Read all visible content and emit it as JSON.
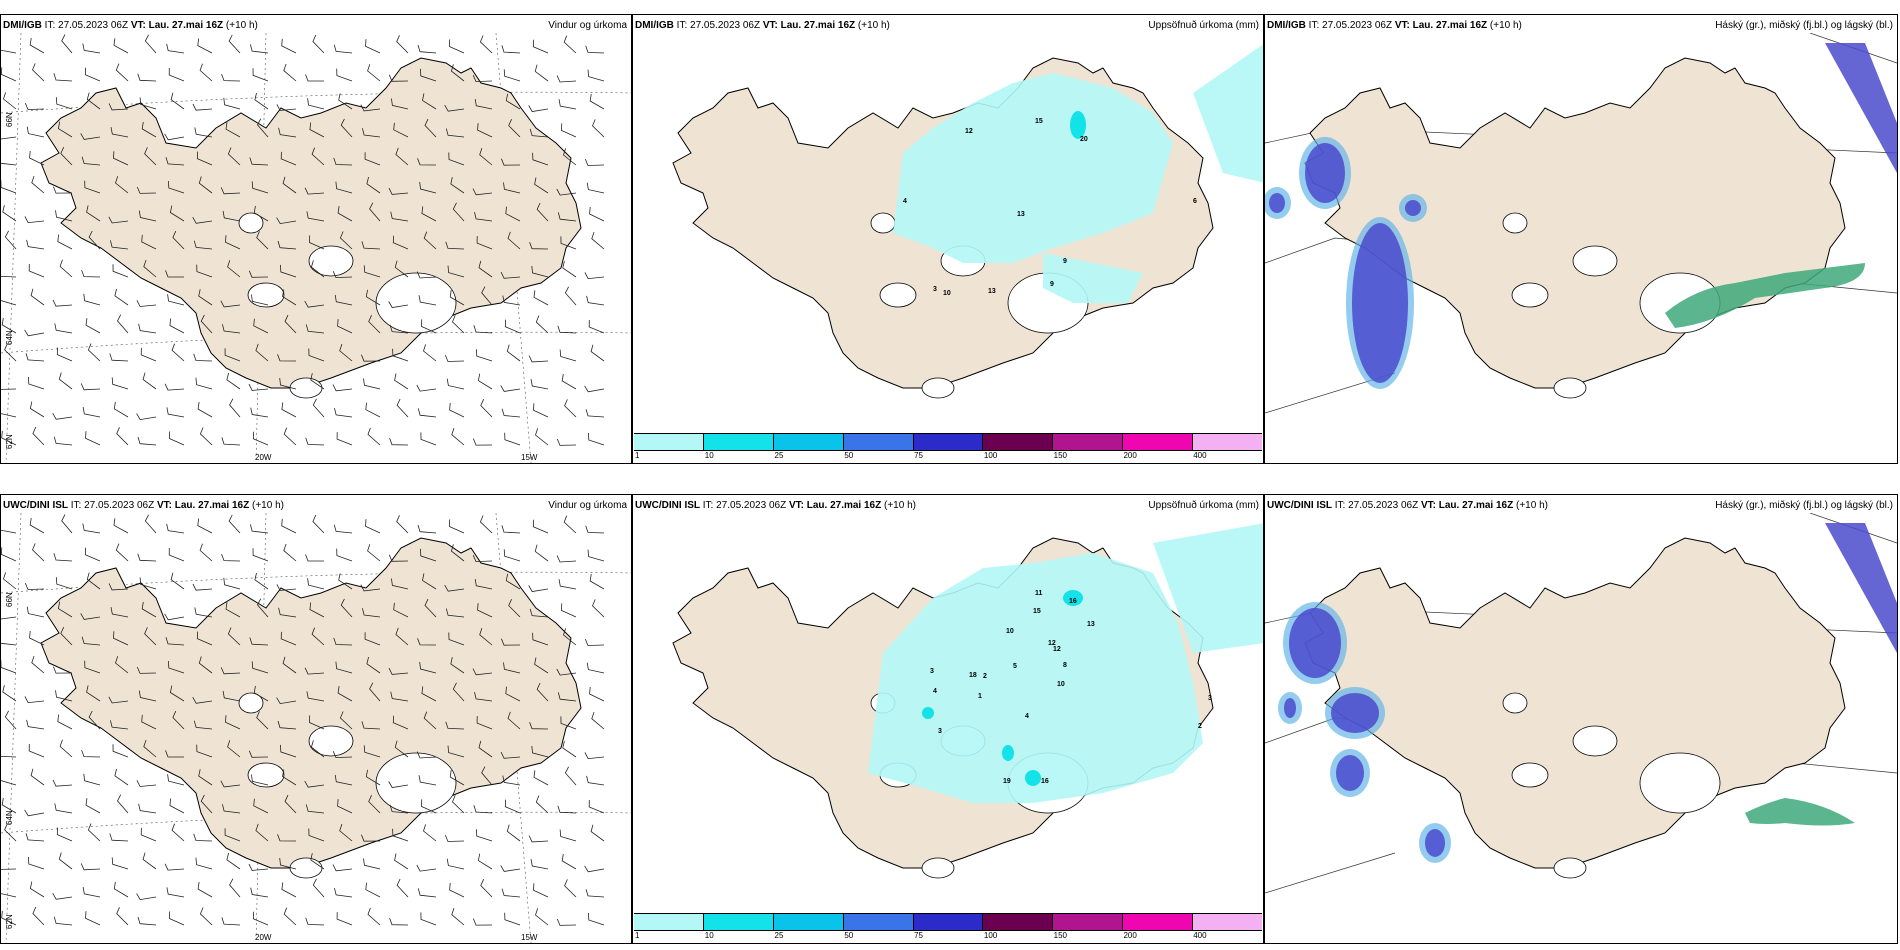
{
  "rows": [
    {
      "model": "DMI/IGB",
      "it_label": "IT:",
      "it_value": "27.05.2023 06Z",
      "vt_label": "VT: Lau. 27.mai 16Z",
      "lead": "(+10 h)",
      "titles": [
        "Vindur og úrkoma",
        "Uppsöfnuð úrkoma (mm)",
        "Háský (gr.), miðský (fj.bl.) og lágský (bl.)"
      ],
      "precip_labels": [
        "12",
        "15",
        "20",
        "13",
        "4",
        "9",
        "9",
        "6",
        "3",
        "10",
        "13"
      ]
    },
    {
      "model": "UWC/DINI ISL",
      "it_label": "IT:",
      "it_value": "27.05.2023 06Z",
      "vt_label": "VT: Lau. 27.mai 16Z",
      "lead": "(+10 h)",
      "titles": [
        "Vindur og úrkoma",
        "Uppsöfnuð úrkoma (mm)",
        "Háský (gr.), miðský (fj.bl.) og lágský (bl.)"
      ],
      "precip_labels": [
        "11",
        "15",
        "16",
        "13",
        "10",
        "12",
        "8",
        "5",
        "3",
        "3",
        "2",
        "18",
        "10",
        "4",
        "12",
        "19",
        "16",
        "2",
        "1",
        "4",
        "3"
      ]
    }
  ],
  "axis_labels": {
    "lat_top": "66N",
    "lat_mid": "64N",
    "lat_bottom": "62N",
    "lon_left": "20W",
    "lon_right": "15W"
  },
  "colorbar": {
    "ticks": [
      "1",
      "10",
      "25",
      "50",
      "75",
      "100",
      "150",
      "200",
      "400"
    ],
    "colors": [
      "#b3f7f7",
      "#13e3e8",
      "#09c3e8",
      "#3b73e8",
      "#2b2bc9",
      "#6b0050",
      "#b0158f",
      "#f006b0",
      "#f3b0f3"
    ]
  },
  "colors": {
    "land": "#efe4d4",
    "precip_light": "#b3f7f7",
    "precip_mid": "#13e3e8",
    "cloud_high": "#3ea87a",
    "cloud_mid": "#4a4acc",
    "cloud_low": "#5ab0e8"
  }
}
